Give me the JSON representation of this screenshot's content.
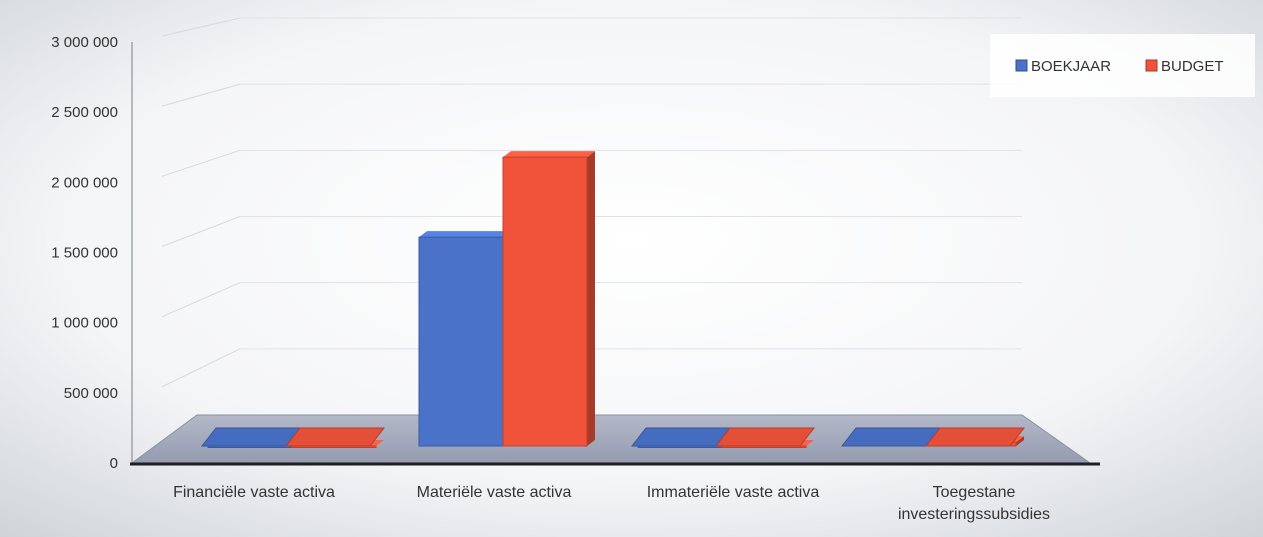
{
  "chart_data": {
    "type": "bar",
    "title": "",
    "xlabel": "",
    "ylabel": "",
    "ylim": [
      0,
      3000000
    ],
    "yticks": [
      "0",
      "500 000",
      "1 000 000",
      "1 500 000",
      "2 000 000",
      "2 500 000",
      "3 000 000"
    ],
    "ytick_values": [
      0,
      500000,
      1000000,
      1500000,
      2000000,
      2500000,
      3000000
    ],
    "categories": [
      [
        "Financiële vaste activa"
      ],
      [
        "Materiële vaste activa"
      ],
      [
        "Immateriële vaste activa"
      ],
      [
        "Toegestane",
        "investeringssubsidies"
      ]
    ],
    "series": [
      {
        "name": "BOEKJAAR",
        "color": "#4a72c9",
        "values": [
          0,
          1670000,
          0,
          30000
        ]
      },
      {
        "name": "BUDGET",
        "color": "#f0533a",
        "values": [
          0,
          2310000,
          0,
          30000
        ]
      }
    ],
    "legend_position": "top-right",
    "grid": true,
    "style": "3d-column"
  }
}
